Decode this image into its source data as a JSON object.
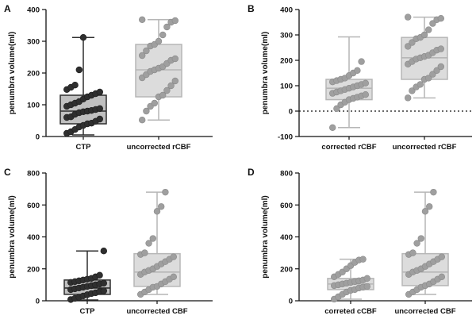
{
  "colors": {
    "dark_fill": "#454545",
    "dark_stroke": "#2e2e2e",
    "light_fill": "#dcdcdc",
    "light_stroke": "#b6b6b6",
    "dark_point": "#2f2f2f",
    "light_point": "#9f9f9f"
  },
  "chart_data": [
    {
      "type": "box",
      "panel": "A",
      "ylabel": "penumbra volume(ml)",
      "ylim": [
        0,
        400
      ],
      "yticks": [
        0,
        100,
        200,
        300,
        400
      ],
      "zero_line": false,
      "categories": [
        "CTP",
        "uncorrected rCBF"
      ],
      "series": [
        {
          "name": "CTP",
          "style": "dark",
          "whisker_low": 5,
          "q1": 40,
          "median": 80,
          "q3": 130,
          "whisker_high": 312,
          "points": [
            10,
            15,
            22,
            30,
            35,
            40,
            42,
            48,
            55,
            60,
            62,
            70,
            75,
            78,
            80,
            82,
            85,
            88,
            95,
            100,
            105,
            110,
            118,
            125,
            130,
            135,
            140,
            148,
            155,
            162,
            210,
            312
          ]
        },
        {
          "name": "uncorrected rCBF",
          "style": "light",
          "whisker_low": 52,
          "q1": 125,
          "median": 210,
          "q3": 290,
          "whisker_high": 368,
          "points": [
            52,
            80,
            95,
            105,
            125,
            130,
            145,
            160,
            175,
            185,
            195,
            205,
            210,
            215,
            220,
            230,
            240,
            245,
            255,
            270,
            285,
            290,
            300,
            320,
            345,
            360,
            365,
            368
          ]
        }
      ]
    },
    {
      "type": "box",
      "panel": "B",
      "ylabel": "penumbra volume(ml)",
      "ylim": [
        -100,
        400
      ],
      "yticks": [
        -100,
        0,
        100,
        200,
        300,
        400
      ],
      "zero_line": true,
      "categories": [
        "corrected rCBF",
        "uncorrected rCBF"
      ],
      "series": [
        {
          "name": "corrected rCBF",
          "style": "light",
          "whisker_low": -65,
          "q1": 45,
          "median": 90,
          "q3": 125,
          "whisker_high": 292,
          "points": [
            -65,
            10,
            25,
            35,
            45,
            50,
            55,
            60,
            65,
            70,
            75,
            80,
            85,
            90,
            95,
            100,
            105,
            110,
            115,
            120,
            125,
            130,
            140,
            150,
            160,
            195
          ]
        },
        {
          "name": "uncorrected rCBF",
          "style": "light",
          "whisker_low": 52,
          "q1": 125,
          "median": 210,
          "q3": 290,
          "whisker_high": 370,
          "points": [
            52,
            80,
            95,
            105,
            125,
            130,
            145,
            160,
            175,
            185,
            195,
            205,
            210,
            215,
            220,
            230,
            240,
            245,
            255,
            270,
            285,
            290,
            300,
            320,
            345,
            360,
            365,
            370
          ]
        }
      ]
    },
    {
      "type": "box",
      "panel": "C",
      "ylabel": "penumbra volume(ml)",
      "ylim": [
        0,
        800
      ],
      "yticks": [
        0,
        200,
        400,
        600,
        800
      ],
      "zero_line": false,
      "categories": [
        "CTP",
        "uncorrected CBF"
      ],
      "series": [
        {
          "name": "CTP",
          "style": "dark",
          "whisker_low": 5,
          "q1": 40,
          "median": 80,
          "q3": 130,
          "whisker_high": 312,
          "points": [
            8,
            15,
            22,
            30,
            38,
            45,
            50,
            58,
            62,
            70,
            75,
            80,
            85,
            90,
            95,
            100,
            105,
            110,
            115,
            120,
            125,
            130,
            135,
            140,
            150,
            160,
            312
          ]
        },
        {
          "name": "uncorrected CBF",
          "style": "light",
          "whisker_low": 40,
          "q1": 90,
          "median": 180,
          "q3": 295,
          "whisker_high": 680,
          "points": [
            40,
            55,
            70,
            85,
            90,
            105,
            120,
            135,
            150,
            165,
            180,
            190,
            200,
            215,
            230,
            245,
            260,
            275,
            290,
            300,
            360,
            390,
            560,
            590,
            680
          ]
        }
      ]
    },
    {
      "type": "box",
      "panel": "D",
      "ylabel": "penumbra volume(ml)",
      "ylim": [
        0,
        800
      ],
      "yticks": [
        0,
        200,
        400,
        600,
        800
      ],
      "zero_line": false,
      "categories": [
        "correted cCBF",
        "uncorrected CBF"
      ],
      "series": [
        {
          "name": "correted cCBF",
          "style": "light",
          "whisker_low": 10,
          "q1": 70,
          "median": 105,
          "q3": 140,
          "whisker_high": 260,
          "points": [
            10,
            25,
            40,
            55,
            65,
            70,
            80,
            85,
            90,
            95,
            100,
            105,
            110,
            115,
            120,
            125,
            130,
            140,
            150,
            165,
            180,
            200,
            220,
            240,
            255,
            260
          ]
        },
        {
          "name": "uncorrected CBF",
          "style": "light",
          "whisker_low": 40,
          "q1": 95,
          "median": 180,
          "q3": 295,
          "whisker_high": 680,
          "points": [
            40,
            55,
            70,
            85,
            95,
            105,
            120,
            135,
            150,
            165,
            180,
            190,
            200,
            215,
            230,
            245,
            260,
            275,
            290,
            300,
            360,
            390,
            560,
            590,
            680
          ]
        }
      ]
    }
  ]
}
